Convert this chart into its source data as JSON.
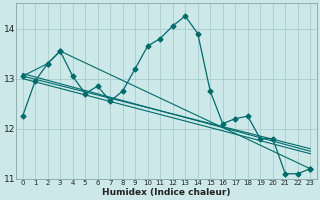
{
  "xlabel": "Humidex (Indice chaleur)",
  "bg_color": "#cce8e8",
  "line_color": "#006b6b",
  "grid_color": "#aacccc",
  "xlim": [
    -0.5,
    23.5
  ],
  "ylim": [
    11.0,
    14.5
  ],
  "yticks": [
    11,
    12,
    13,
    14
  ],
  "xticks": [
    0,
    1,
    2,
    3,
    4,
    5,
    6,
    7,
    8,
    9,
    10,
    11,
    12,
    13,
    14,
    15,
    16,
    17,
    18,
    19,
    20,
    21,
    22,
    23
  ],
  "line1_x": [
    0,
    1,
    2,
    3,
    4,
    5,
    6,
    7,
    8,
    9,
    10,
    11,
    12,
    13,
    14,
    15,
    16,
    17,
    18,
    19,
    20,
    21,
    22,
    23
  ],
  "line1_y": [
    12.25,
    12.95,
    13.3,
    13.55,
    13.05,
    12.7,
    12.85,
    12.55,
    12.75,
    13.2,
    13.65,
    13.8,
    14.05,
    14.25,
    13.9,
    12.75,
    12.1,
    12.2,
    12.25,
    11.8,
    11.8,
    11.1,
    11.1,
    11.2
  ],
  "line2_x": [
    0,
    2,
    3,
    23
  ],
  "line2_y": [
    13.05,
    13.3,
    13.55,
    11.2
  ],
  "line3_x": [
    0,
    23
  ],
  "line3_y": [
    13.1,
    11.55
  ],
  "line4_x": [
    0,
    23
  ],
  "line4_y": [
    13.05,
    11.6
  ],
  "line5_x": [
    0,
    23
  ],
  "line5_y": [
    13.0,
    11.5
  ],
  "markersize": 2.5
}
